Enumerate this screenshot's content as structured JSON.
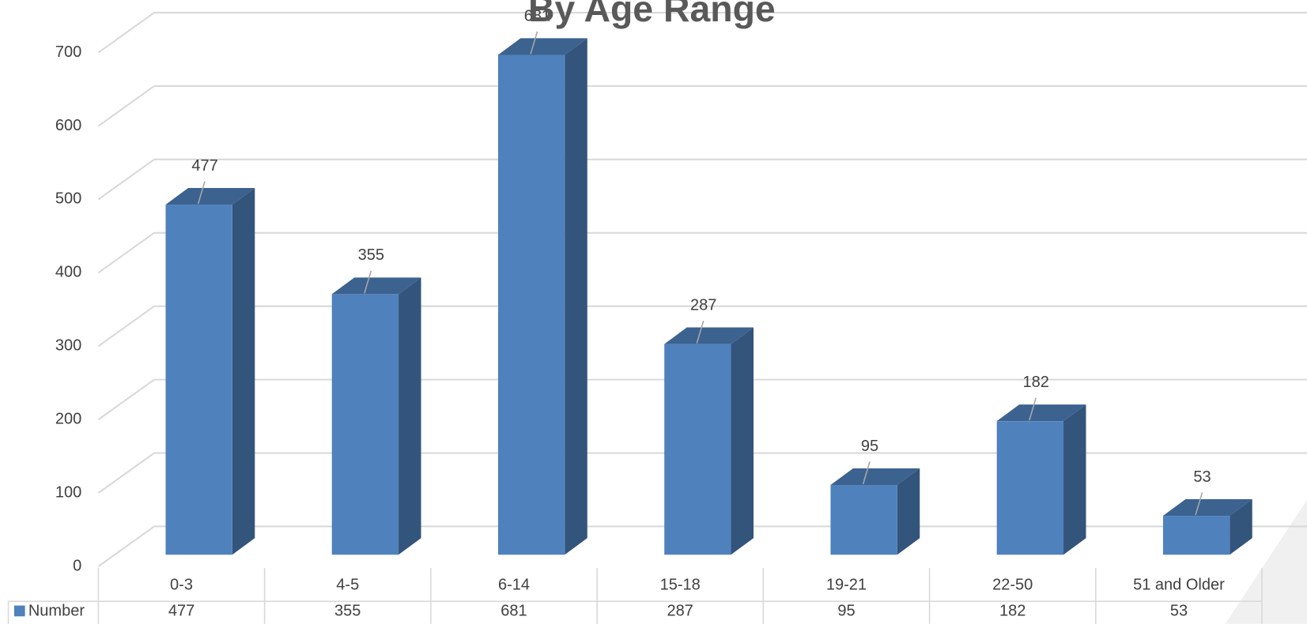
{
  "chart_data": {
    "type": "bar3d",
    "title": "By Age Range",
    "categories": [
      "0-3",
      "4-5",
      "6-14",
      "15-18",
      "19-21",
      "22-50",
      "51 and Older"
    ],
    "series": [
      {
        "name": "Number",
        "color": "#4f81bd",
        "values": [
          477,
          355,
          681,
          287,
          95,
          182,
          53
        ]
      }
    ],
    "ylim": [
      0,
      700
    ],
    "yticks": [
      0,
      100,
      200,
      300,
      400,
      500,
      600,
      700
    ],
    "grid": true,
    "data_table": true
  }
}
